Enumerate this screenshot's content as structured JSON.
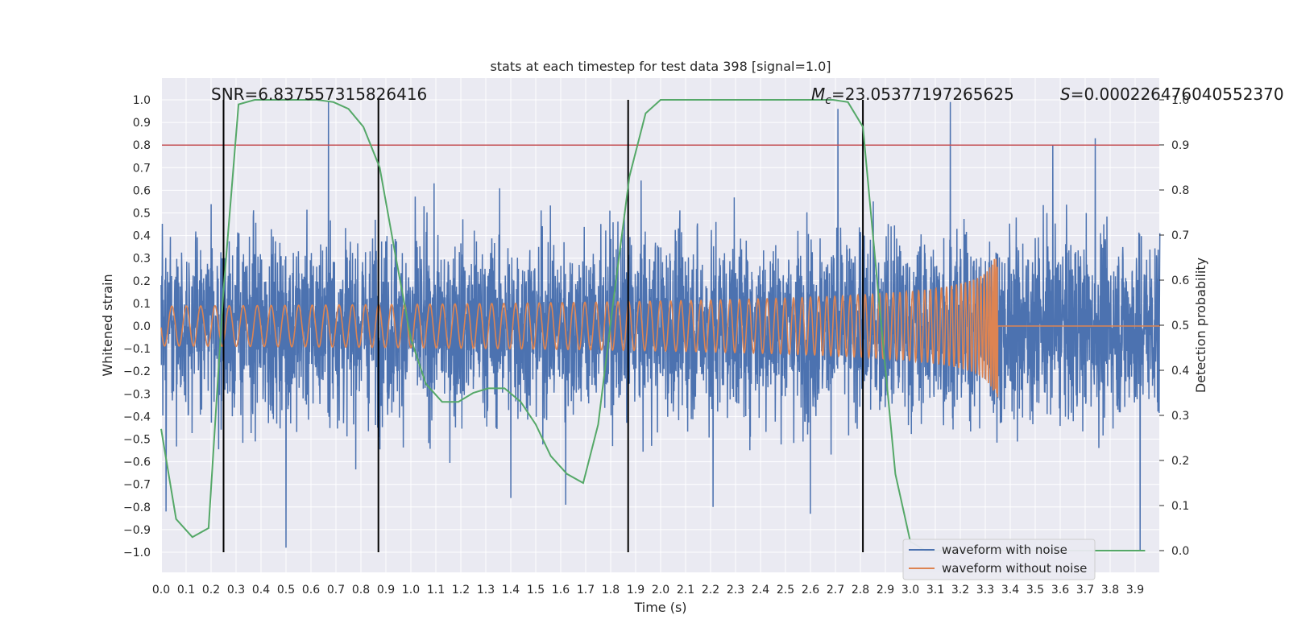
{
  "chart_data": {
    "type": "line",
    "title": "stats at each timestep for test data 398 [signal=1.0]",
    "xlabel": "Time (s)",
    "ylabel": "Whitened strain",
    "y2label": "Detection probability",
    "xlim": [
      0.0,
      4.0
    ],
    "ylim": [
      -1.1,
      1.1
    ],
    "y2lim": [
      -0.05,
      1.05
    ],
    "x_ticks": [
      0.0,
      0.1,
      0.2,
      0.3,
      0.4,
      0.5,
      0.6,
      0.7,
      0.8,
      0.9,
      1.0,
      1.1,
      1.2,
      1.3,
      1.4,
      1.5,
      1.6,
      1.7,
      1.8,
      1.9,
      2.0,
      2.1,
      2.2,
      2.3,
      2.4,
      2.5,
      2.6,
      2.7,
      2.8,
      2.9,
      3.0,
      3.1,
      3.2,
      3.3,
      3.4,
      3.5,
      3.6,
      3.7,
      3.8,
      3.9
    ],
    "y_ticks": [
      -1.0,
      -0.9,
      -0.8,
      -0.7,
      -0.6,
      -0.5,
      -0.4,
      -0.3,
      -0.2,
      -0.1,
      0.0,
      0.1,
      0.2,
      0.3,
      0.4,
      0.5,
      0.6,
      0.7,
      0.8,
      0.9,
      1.0
    ],
    "y2_ticks": [
      0.0,
      0.1,
      0.2,
      0.3,
      0.4,
      0.5,
      0.6,
      0.7,
      0.8,
      0.9,
      1.0
    ],
    "grid": true,
    "threshold": 0.8,
    "vlines": [
      0.25,
      0.87,
      1.87,
      2.81
    ],
    "annotations": {
      "snr": "SNR=6.837557315826416",
      "mc_symbol": "M",
      "mc_sub": "c",
      "mc_value": "=23.05377197265625",
      "s_symbol": "S",
      "s_value": "=0.000226476040552370"
    },
    "series": [
      {
        "name": "waveform with noise",
        "color": "#4c72b0",
        "kind": "noise",
        "spikes": [
          [
            0.02,
            0.77
          ],
          [
            0.67,
            0.99
          ],
          [
            1.87,
            0.95
          ],
          [
            2.71,
            0.96
          ],
          [
            3.16,
            0.99
          ],
          [
            3.57,
            0.8
          ],
          [
            3.74,
            0.83
          ],
          [
            0.5,
            -0.98
          ],
          [
            3.92,
            -0.99
          ],
          [
            0.02,
            -0.82
          ],
          [
            2.6,
            -0.83
          ],
          [
            1.62,
            -0.79
          ],
          [
            1.4,
            -0.76
          ],
          [
            2.21,
            -0.8
          ]
        ]
      },
      {
        "name": "waveform without noise",
        "color": "#dd8452",
        "kind": "chirp",
        "merger_time": 3.35,
        "peak_amplitude": 0.36
      },
      {
        "name": "detection probability",
        "color": "#55a868",
        "axis": "right",
        "x": [
          0.0,
          0.06,
          0.125,
          0.19,
          0.25,
          0.31,
          0.375,
          0.44,
          0.5,
          0.56,
          0.625,
          0.69,
          0.75,
          0.81,
          0.875,
          0.94,
          1.0,
          1.06,
          1.125,
          1.19,
          1.25,
          1.31,
          1.375,
          1.44,
          1.5,
          1.56,
          1.625,
          1.69,
          1.75,
          1.81,
          1.875,
          1.94,
          2.0,
          2.06,
          2.125,
          2.19,
          2.25,
          2.31,
          2.375,
          2.44,
          2.5,
          2.56,
          2.625,
          2.69,
          2.75,
          2.81,
          2.875,
          2.94,
          3.0,
          3.06,
          3.125,
          3.19,
          3.25,
          3.31,
          3.375,
          3.44,
          3.5,
          3.56,
          3.625,
          3.69,
          3.75,
          3.81,
          3.875,
          3.94
        ],
        "values": [
          0.27,
          0.07,
          0.03,
          0.05,
          0.58,
          0.99,
          1.0,
          1.0,
          1.0,
          1.0,
          1.0,
          0.995,
          0.98,
          0.94,
          0.85,
          0.65,
          0.47,
          0.37,
          0.33,
          0.33,
          0.35,
          0.36,
          0.36,
          0.33,
          0.28,
          0.21,
          0.17,
          0.15,
          0.28,
          0.55,
          0.83,
          0.97,
          1.0,
          1.0,
          1.0,
          1.0,
          1.0,
          1.0,
          1.0,
          1.0,
          1.0,
          1.0,
          1.0,
          1.0,
          0.995,
          0.94,
          0.55,
          0.17,
          0.02,
          0.0,
          0.0,
          0.0,
          0.0,
          0.0,
          0.0,
          0.0,
          0.0,
          0.0,
          0.0,
          0.0,
          0.0,
          0.0,
          0.0,
          0.0
        ]
      }
    ],
    "legend": {
      "position": "lower-right",
      "entries": [
        "waveform with noise",
        "waveform without noise"
      ]
    }
  }
}
